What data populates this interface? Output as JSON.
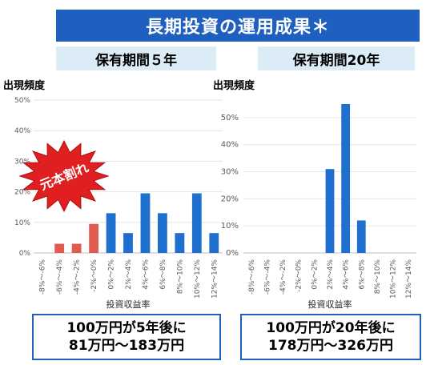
{
  "header": {
    "title": "長期投資の運用成果＊"
  },
  "charts_text": {
    "left_heading": "保有期間５年",
    "right_heading": "保有期間20年",
    "stamp_label": "元本割れ"
  },
  "callouts": {
    "left_line1": "100万円が5年後に",
    "left_line2": "81万円～183万円",
    "right_line1": "100万円が20年後に",
    "right_line2": "178万円～326万円"
  },
  "colors": {
    "banner": "#1f5fbf",
    "bar_blue": "#1f6fcf",
    "bar_red": "#e05c50",
    "stamp_red": "#e02020",
    "subhead_bg": "#dcecf6"
  },
  "chart_data": [
    {
      "type": "bar",
      "title": "保有期間５年",
      "ylabel": "出現頻度",
      "xlabel": "投資収益率",
      "ylim": [
        0,
        0.5
      ],
      "yticks": [
        "0%",
        "10%",
        "20%",
        "30%",
        "40%",
        "50%"
      ],
      "grid": true,
      "categories": [
        "-8%～-6%",
        "-6%～-4%",
        "-4%～-2%",
        "-2%～0%",
        "0%～2%",
        "2%～4%",
        "4%～6%",
        "6%～8%",
        "8%～10%",
        "10%～12%",
        "12%～14%"
      ],
      "values": [
        0,
        0.03,
        0.03,
        0.095,
        0.13,
        0.065,
        0.195,
        0.13,
        0.065,
        0.195,
        0.065
      ],
      "bar_colors": [
        "red",
        "red",
        "red",
        "red",
        "blue",
        "blue",
        "blue",
        "blue",
        "blue",
        "blue",
        "blue"
      ]
    },
    {
      "type": "bar",
      "title": "保有期間20年",
      "ylabel": "出現頻度",
      "xlabel": "投資収益率",
      "ylim": [
        0,
        0.55
      ],
      "yticks": [
        "0%",
        "10%",
        "20%",
        "30%",
        "40%",
        "50%"
      ],
      "grid": true,
      "categories": [
        "-8%～-6%",
        "-6%～-4%",
        "-4%～-2%",
        "-2%～0%",
        "0%～2%",
        "2%～4%",
        "4%～6%",
        "6%～8%",
        "8%～10%",
        "10%～12%",
        "12%～14%"
      ],
      "values": [
        0,
        0,
        0,
        0,
        0,
        0.31,
        0.55,
        0.12,
        0,
        0,
        0
      ],
      "bar_colors": [
        "blue",
        "blue",
        "blue",
        "blue",
        "blue",
        "blue",
        "blue",
        "blue",
        "blue",
        "blue",
        "blue"
      ]
    }
  ]
}
